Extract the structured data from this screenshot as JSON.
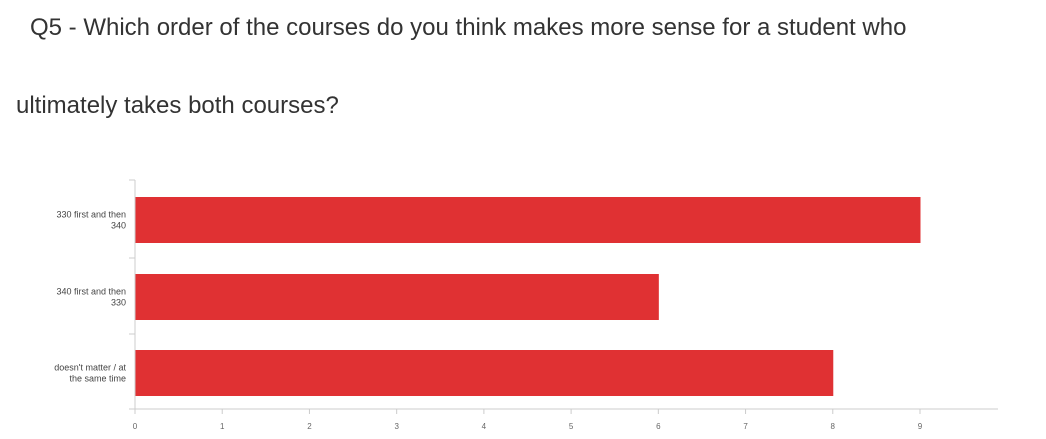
{
  "question": {
    "line1": "Q5 - Which order of the courses do you think makes more sense for a student who",
    "line2": "ultimately takes both courses?"
  },
  "chart_data": {
    "type": "bar",
    "orientation": "horizontal",
    "title": "Q5 - Which order of the courses do you think makes more sense for a student who ultimately takes both courses?",
    "categories": [
      [
        "330 first and then",
        "340"
      ],
      [
        "340 first and then",
        "330"
      ],
      [
        "doesn't matter / at",
        "the same time"
      ]
    ],
    "values": [
      9,
      6,
      8
    ],
    "xlim": [
      0,
      9.9
    ],
    "ticks": [
      "0",
      "1",
      "2",
      "3",
      "4",
      "5",
      "6",
      "7",
      "8",
      "9"
    ],
    "tick_values": [
      0,
      1,
      2,
      3,
      4,
      5,
      6,
      7,
      8,
      9
    ],
    "xlabel": "",
    "ylabel": "",
    "grid": false,
    "legend": "none",
    "colors": {
      "bar": "#e03133",
      "axis": "#cccccc",
      "tick_label": "#666666",
      "category_label": "#444444"
    }
  }
}
